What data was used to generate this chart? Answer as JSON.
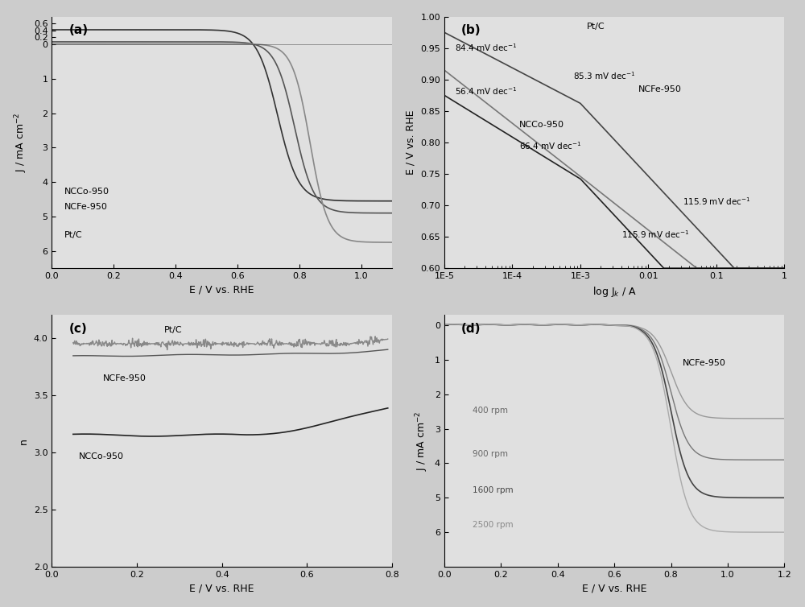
{
  "fig_width": 10.0,
  "fig_height": 7.54,
  "background_color": "#cccccc",
  "panel_bg": "#e0e0e0",
  "a_ylabel": "J / mA cm$^{-2}$",
  "a_xlabel": "E / V vs. RHE",
  "a_xlim": [
    0.0,
    1.1
  ],
  "a_ylim": [
    -6.5,
    0.8
  ],
  "a_xticks": [
    0.0,
    0.2,
    0.4,
    0.6,
    0.8,
    1.0
  ],
  "b_ylabel": "E / V vs. RHE",
  "b_xlabel": "log J$_{k}$ / A",
  "b_xlim_log": [
    -5,
    0
  ],
  "b_ylim": [
    0.6,
    1.0
  ],
  "b_yticks": [
    0.6,
    0.65,
    0.7,
    0.75,
    0.8,
    0.85,
    0.9,
    0.95,
    1.0
  ],
  "c_ylabel": "n",
  "c_xlabel": "E / V vs. RHE",
  "c_xlim": [
    0.0,
    0.8
  ],
  "c_ylim": [
    2.0,
    4.2
  ],
  "c_yticks": [
    2.0,
    2.5,
    3.0,
    3.5,
    4.0
  ],
  "c_xticks": [
    0.0,
    0.2,
    0.4,
    0.6,
    0.8
  ],
  "d_ylabel": "J / mA cm$^{-2}$",
  "d_xlabel": "E / V vs. RHE",
  "d_xlim": [
    0.0,
    1.2
  ],
  "d_ylim": [
    -7.0,
    0.3
  ],
  "d_xticks": [
    0.0,
    0.2,
    0.4,
    0.6,
    0.8,
    1.0,
    1.2
  ]
}
